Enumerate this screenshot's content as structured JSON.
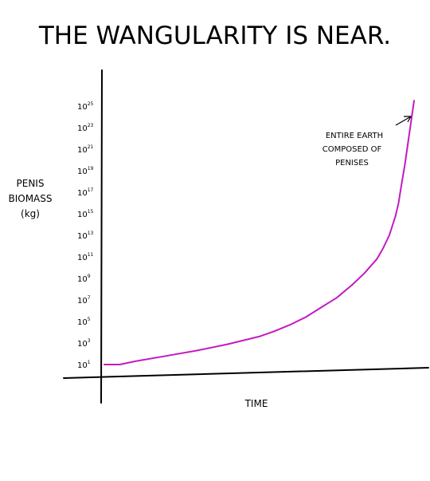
{
  "chart_data": {
    "type": "line",
    "title": "THE WANGULARITY IS NEAR.",
    "xlabel": "TIME",
    "ylabel": [
      "PENIS",
      "BIOMASS",
      "(kg)"
    ],
    "y_scale": "log",
    "y_tick_base": "10",
    "y_tick_exponents": [
      1,
      3,
      5,
      7,
      9,
      11,
      13,
      15,
      17,
      19,
      21,
      23,
      25
    ],
    "series": [
      {
        "color": "#c21bc2",
        "x": [
          0.0,
          0.05,
          0.1,
          0.2,
          0.3,
          0.4,
          0.5,
          0.55,
          0.6,
          0.65,
          0.7,
          0.75,
          0.8,
          0.84,
          0.88,
          0.9,
          0.92,
          0.94,
          0.95,
          0.96,
          0.97,
          0.98,
          0.99,
          1.0
        ],
        "y": [
          1,
          1,
          1.3,
          1.8,
          2.3,
          2.9,
          3.6,
          4.1,
          4.7,
          5.4,
          6.3,
          7.2,
          8.4,
          9.5,
          10.8,
          11.8,
          13.0,
          14.8,
          16.0,
          17.8,
          19.5,
          21.5,
          23.5,
          25.5
        ]
      }
    ],
    "annotation": {
      "lines": [
        "ENTIRE EARTH",
        "COMPOSED OF",
        "PENISES"
      ]
    },
    "grid": false,
    "legend": "none"
  }
}
